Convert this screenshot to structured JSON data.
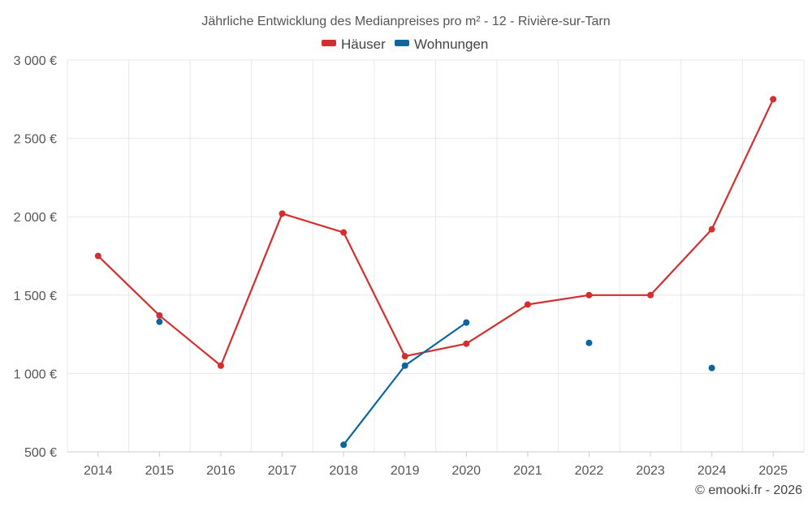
{
  "chart_data": {
    "type": "line",
    "title": "Jährliche Entwicklung des Medianpreises pro m² - 12 - Rivière-sur-Tarn",
    "categories": [
      "2014",
      "2015",
      "2016",
      "2017",
      "2018",
      "2019",
      "2020",
      "2021",
      "2022",
      "2023",
      "2024",
      "2025"
    ],
    "series": [
      {
        "name": "Häuser",
        "color": "#d32f2f",
        "values": [
          1750,
          1370,
          1050,
          2020,
          1900,
          1110,
          1190,
          1440,
          1500,
          1500,
          1920,
          2750
        ]
      },
      {
        "name": "Wohnungen",
        "color": "#0a66a0",
        "values": [
          null,
          1330,
          null,
          null,
          545,
          1050,
          1325,
          null,
          1195,
          null,
          1035,
          null
        ]
      }
    ],
    "y_ticks": [
      "500 €",
      "1 000 €",
      "1 500 €",
      "2 000 €",
      "2 500 €",
      "3 000 €"
    ],
    "y_tick_values": [
      500,
      1000,
      1500,
      2000,
      2500,
      3000
    ],
    "ylim": [
      500,
      3000
    ],
    "xlabel": "",
    "ylabel": "",
    "grid": true,
    "legend_position": "top-center"
  },
  "credit": "© emooki.fr - 2026"
}
